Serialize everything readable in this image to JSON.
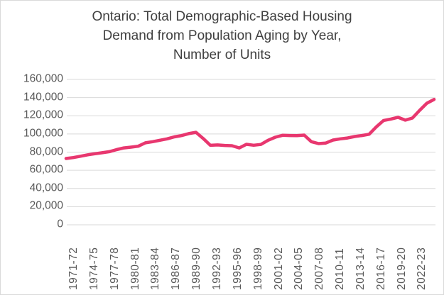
{
  "title": {
    "lines": [
      "Ontario: Total Demographic-Based Housing",
      "Demand from Population Aging by Year,",
      "Number of Units"
    ]
  },
  "chart_data": {
    "type": "line",
    "title": "Ontario: Total Demographic-Based Housing Demand from Population Aging by Year, Number of Units",
    "xlabel": "",
    "ylabel": "",
    "ylim": [
      0,
      160000
    ],
    "grid": true,
    "legend": "none",
    "line_color": "#e8376f",
    "gridline_color": "#d9d9d9",
    "axis_text_color": "#595959",
    "title_color": "#404040",
    "x": [
      "1971-72",
      "1972-73",
      "1973-74",
      "1974-75",
      "1975-76",
      "1976-77",
      "1977-78",
      "1978-79",
      "1979-80",
      "1980-81",
      "1981-82",
      "1982-83",
      "1983-84",
      "1984-85",
      "1985-86",
      "1986-87",
      "1987-88",
      "1988-89",
      "1989-90",
      "1990-91",
      "1991-92",
      "1992-93",
      "1993-94",
      "1994-95",
      "1995-96",
      "1996-97",
      "1997-98",
      "1998-99",
      "1999-00",
      "2000-01",
      "2001-02",
      "2002-03",
      "2003-04",
      "2004-05",
      "2005-06",
      "2006-07",
      "2007-08",
      "2008-09",
      "2009-10",
      "2010-11",
      "2011-12",
      "2012-13",
      "2013-14",
      "2014-15",
      "2015-16",
      "2016-17",
      "2017-18",
      "2018-19",
      "2019-20",
      "2020-21",
      "2021-22",
      "2022-23"
    ],
    "values": [
      73000,
      74000,
      75500,
      77000,
      78200,
      79300,
      80500,
      82700,
      84600,
      85500,
      86500,
      90200,
      91500,
      93000,
      94600,
      96800,
      98200,
      100400,
      101800,
      95000,
      87500,
      87900,
      87300,
      87000,
      84600,
      88600,
      87600,
      88400,
      93000,
      96400,
      98500,
      98300,
      98200,
      98700,
      91500,
      89400,
      90000,
      93300,
      94600,
      95500,
      97200,
      98300,
      99700,
      107800,
      114800,
      116400,
      118300,
      115200,
      117500,
      126000,
      133800,
      138000
    ],
    "x_tick_labels": [
      "1971-72",
      "1974-75",
      "1977-78",
      "1980-81",
      "1983-84",
      "1986-87",
      "1989-90",
      "1992-93",
      "1995-96",
      "1998-99",
      "2001-02",
      "2004-05",
      "2007-08",
      "2010-11",
      "2013-14",
      "2016-17",
      "2019-20",
      "2022-23"
    ],
    "y_ticks": [
      0,
      20000,
      40000,
      60000,
      80000,
      100000,
      120000,
      140000,
      160000
    ],
    "y_tick_labels": [
      "0",
      "20,000",
      "40,000",
      "60,000",
      "80,000",
      "100,000",
      "120,000",
      "140,000",
      "160,000"
    ]
  }
}
